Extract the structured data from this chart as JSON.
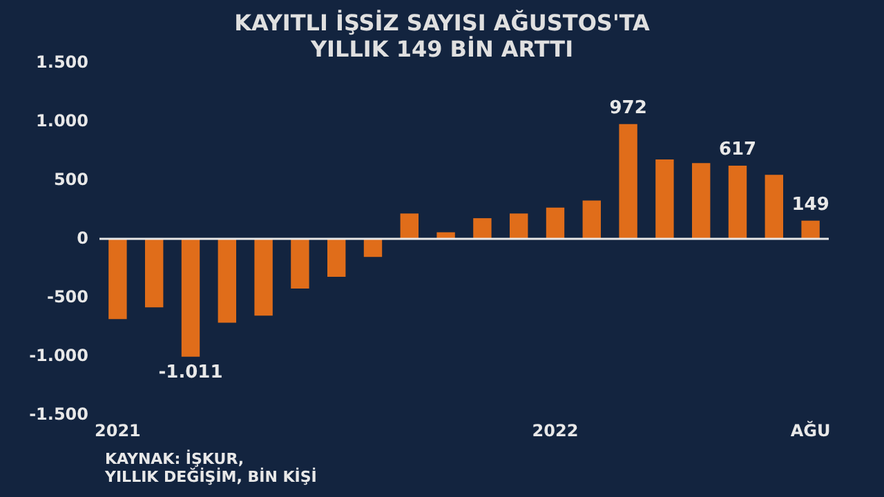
{
  "chart_data": {
    "type": "bar",
    "title": "KAYITLI İŞSİZ SAYISI AĞUSTOS'TA\nYILLIK 149 BİN ARTTI",
    "categories": [
      "2021",
      null,
      null,
      null,
      null,
      null,
      null,
      null,
      null,
      null,
      null,
      null,
      "2022",
      null,
      null,
      null,
      null,
      null,
      null,
      "AĞU"
    ],
    "values": [
      -690,
      -590,
      -1011,
      -720,
      -660,
      -430,
      -330,
      -160,
      210,
      50,
      170,
      210,
      260,
      320,
      972,
      670,
      640,
      617,
      540,
      149
    ],
    "value_labels": [
      null,
      null,
      "-1.011",
      null,
      null,
      null,
      null,
      null,
      null,
      null,
      null,
      null,
      null,
      null,
      "972",
      null,
      null,
      "617",
      null,
      "149"
    ],
    "color": "#e06d1a",
    "ylim": [
      -1500,
      1500
    ],
    "yticks": [
      {
        "value": -1500,
        "label": "-1.500"
      },
      {
        "value": -1000,
        "label": "-1.000"
      },
      {
        "value": -500,
        "label": "-500"
      },
      0,
      500,
      {
        "value": 1000,
        "label": "1.000"
      },
      {
        "value": 1500,
        "label": "1.500"
      }
    ],
    "grid": false,
    "ref_lines": [
      {
        "axis": "y",
        "value": 0,
        "color": "#e8e8e8"
      }
    ],
    "annotations": [
      "KAYNAK: İŞKUR,\nYILLIK DEĞİŞİM, BİN KİŞİ"
    ]
  }
}
